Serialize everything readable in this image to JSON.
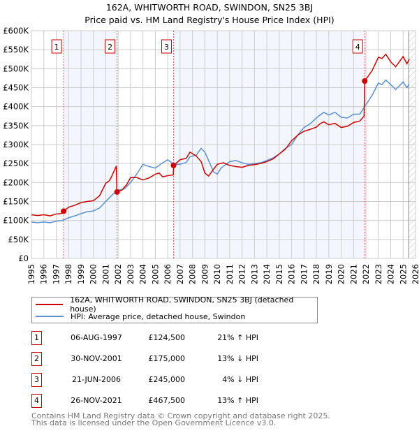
{
  "title": "162A, WHITWORTH ROAD, SWINDON, SN25 3BJ",
  "subtitle": "Price paid vs. HM Land Registry's House Price Index (HPI)",
  "chart_data": {
    "type": "line",
    "xlim": [
      1995,
      2026
    ],
    "ylim": [
      0,
      600000
    ],
    "y_ticks": [
      0,
      50000,
      100000,
      150000,
      200000,
      250000,
      300000,
      350000,
      400000,
      450000,
      500000,
      550000,
      600000
    ],
    "y_tick_labels": [
      "£0",
      "£50K",
      "£100K",
      "£150K",
      "£200K",
      "£250K",
      "£300K",
      "£350K",
      "£400K",
      "£450K",
      "£500K",
      "£550K",
      "£600K"
    ],
    "x_ticks": [
      "1995",
      "1996",
      "1997",
      "1998",
      "1999",
      "2000",
      "2001",
      "2002",
      "2003",
      "2004",
      "2005",
      "2006",
      "2007",
      "2008",
      "2009",
      "2010",
      "2011",
      "2012",
      "2013",
      "2014",
      "2015",
      "2016",
      "2017",
      "2018",
      "2019",
      "2020",
      "2021",
      "2022",
      "2023",
      "2024",
      "2025",
      "2026"
    ],
    "grid": true,
    "hatched_from": 2025.45,
    "series": [
      {
        "name": "162A, WHITWORTH ROAD, SWINDON, SN25 3BJ (detached house)",
        "color": "#cc0000",
        "x": [
          1995,
          1995.5,
          1996,
          1996.5,
          1997,
          1997.4,
          1997.6,
          1998,
          1998.5,
          1999,
          1999.5,
          2000,
          2000.5,
          2001,
          2001.3,
          2001.5,
          2001.85,
          2001.9,
          2002.3,
          2002.7,
          2003,
          2003.5,
          2004,
          2004.5,
          2005,
          2005.3,
          2005.6,
          2006,
          2006.45,
          2006.48,
          2007,
          2007.5,
          2007.8,
          2008.3,
          2008.7,
          2009,
          2009.3,
          2009.7,
          2010,
          2010.5,
          2011,
          2011.5,
          2012,
          2012.5,
          2013,
          2013.5,
          2014,
          2014.5,
          2015,
          2015.5,
          2016,
          2016.5,
          2017,
          2017.5,
          2018,
          2018.3,
          2018.6,
          2019,
          2019.5,
          2020,
          2020.5,
          2021,
          2021.5,
          2021.85,
          2021.9,
          2022.5,
          2023,
          2023.3,
          2023.6,
          2024,
          2024.4,
          2025,
          2025.3,
          2025.5
        ],
        "y": [
          115,
          113,
          115,
          112,
          117,
          118,
          124.5,
          135,
          140,
          147,
          150,
          152,
          165,
          198,
          205,
          218,
          243,
          175,
          180,
          195,
          213,
          213,
          207,
          212,
          222,
          225,
          215,
          218,
          220,
          245,
          260,
          264,
          280,
          270,
          255,
          225,
          217,
          235,
          248,
          252,
          245,
          242,
          240,
          245,
          247,
          250,
          255,
          262,
          275,
          288,
          310,
          325,
          335,
          340,
          346,
          355,
          360,
          352,
          356,
          345,
          348,
          358,
          362,
          375,
          467.5,
          495,
          530,
          527,
          538,
          518,
          505,
          532,
          513,
          525
        ]
      },
      {
        "name": "HPI: Average price, detached house, Swindon",
        "color": "#5b8fd0",
        "x": [
          1995,
          1995.5,
          1996,
          1996.5,
          1997,
          1997.5,
          1998,
          1998.5,
          1999,
          1999.5,
          2000,
          2000.5,
          2001,
          2001.3,
          2001.6,
          2002,
          2002.5,
          2003,
          2003.5,
          2004,
          2004.5,
          2005,
          2005.5,
          2006,
          2006.5,
          2007,
          2007.5,
          2007.8,
          2008.3,
          2008.7,
          2009,
          2009.3,
          2009.7,
          2010,
          2010.3,
          2011,
          2011.5,
          2012,
          2012.5,
          2013,
          2013.5,
          2014,
          2014.5,
          2015,
          2015.5,
          2016,
          2016.5,
          2017,
          2017.5,
          2018,
          2018.3,
          2018.6,
          2019,
          2019.5,
          2020,
          2020.5,
          2021,
          2021.5,
          2021.9,
          2022.5,
          2023,
          2023.3,
          2023.6,
          2024,
          2024.4,
          2025,
          2025.3,
          2025.5
        ],
        "y": [
          96,
          94,
          96,
          94,
          98,
          100,
          107,
          112,
          118,
          123,
          125,
          133,
          150,
          160,
          170,
          180,
          183,
          200,
          222,
          248,
          242,
          238,
          250,
          260,
          248,
          248,
          253,
          268,
          272,
          290,
          280,
          258,
          228,
          222,
          238,
          255,
          258,
          252,
          248,
          250,
          252,
          258,
          265,
          275,
          290,
          300,
          325,
          345,
          355,
          370,
          378,
          385,
          378,
          385,
          372,
          370,
          380,
          380,
          400,
          430,
          462,
          458,
          470,
          458,
          445,
          465,
          450,
          460
        ]
      }
    ],
    "sales": [
      {
        "id": "1",
        "label": "1",
        "x": 1997.6,
        "price": 124500,
        "date": "06-AUG-1997",
        "price_text": "£124,500",
        "hpi": "21% ↑ HPI"
      },
      {
        "id": "2",
        "label": "2",
        "x": 2001.91,
        "price": 175000,
        "date": "30-NOV-2001",
        "price_text": "£175,000",
        "hpi": "13% ↓ HPI"
      },
      {
        "id": "3",
        "label": "3",
        "x": 2006.47,
        "price": 245000,
        "date": "21-JUN-2006",
        "price_text": "£245,000",
        "hpi": "4% ↓ HPI"
      },
      {
        "id": "4",
        "label": "4",
        "x": 2021.9,
        "price": 467500,
        "date": "26-NOV-2021",
        "price_text": "£467,500",
        "hpi": "13% ↑ HPI"
      }
    ]
  },
  "legend": {
    "red": "162A, WHITWORTH ROAD, SWINDON, SN25 3BJ (detached house)",
    "blue": "HPI: Average price, detached house, Swindon"
  },
  "footer": {
    "line1": "Contains HM Land Registry data © Crown copyright and database right 2025.",
    "line2": "This data is licensed under the Open Government Licence v3.0."
  }
}
